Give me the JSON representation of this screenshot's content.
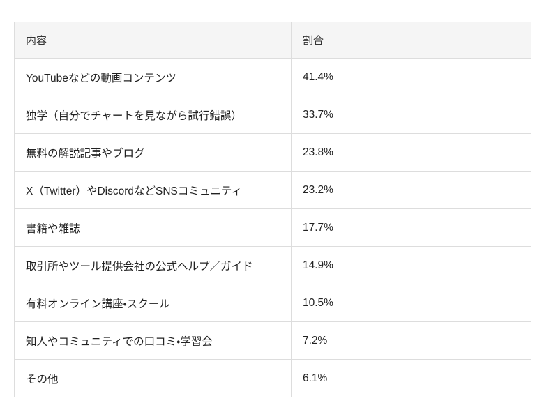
{
  "table": {
    "headers": {
      "content": "内容",
      "ratio": "割合"
    },
    "rows": [
      {
        "content": "YouTubeなどの動画コンテンツ",
        "ratio": "41.4%"
      },
      {
        "content": "独学（自分でチャートを見ながら試行錯誤）",
        "ratio": "33.7%"
      },
      {
        "content": "無料の解説記事やブログ",
        "ratio": "23.8%"
      },
      {
        "content": "X（Twitter）やDiscordなどSNSコミュニティ",
        "ratio": "23.2%"
      },
      {
        "content": "書籍や雑誌",
        "ratio": "17.7%"
      },
      {
        "content": "取引所やツール提供会社の公式ヘルプ／ガイド",
        "ratio": "14.9%"
      },
      {
        "content": "有料オンライン講座・スクール",
        "ratio": "10.5%"
      },
      {
        "content": "知人やコミュニティでの口コミ・学習会",
        "ratio": "7.2%"
      },
      {
        "content": "その他",
        "ratio": "6.1%"
      }
    ]
  },
  "colors": {
    "page_background": "#ffffff",
    "header_background": "#f5f5f5",
    "border": "#dddddd",
    "header_text": "#333333",
    "body_text": "#222222"
  },
  "chart_data": {
    "type": "table",
    "title": "",
    "columns": [
      "内容",
      "割合"
    ],
    "categories": [
      "YouTubeなどの動画コンテンツ",
      "独学（自分でチャートを見ながら試行錯誤）",
      "無料の解説記事やブログ",
      "X（Twitter）やDiscordなどSNSコミュニティ",
      "書籍や雑誌",
      "取引所やツール提供会社の公式ヘルプ／ガイド",
      "有料オンライン講座・スクール",
      "知人やコミュニティでの口コミ・学習会",
      "その他"
    ],
    "values": [
      41.4,
      33.7,
      23.8,
      23.2,
      17.7,
      14.9,
      10.5,
      7.2,
      6.1
    ],
    "value_unit": "%"
  }
}
